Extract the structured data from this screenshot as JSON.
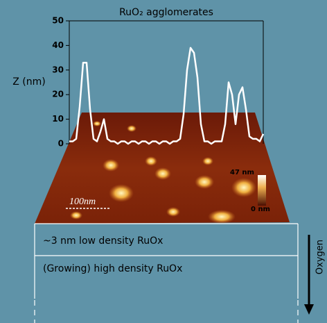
{
  "chart_data": {
    "type": "line",
    "title": "RuO₂ agglomerates",
    "y_label": "Z (nm)",
    "ylim": [
      0,
      50
    ],
    "yticks": [
      0,
      10,
      20,
      30,
      40,
      50
    ],
    "series": [
      {
        "name": null,
        "color": "#ffffff",
        "values": [
          1,
          1,
          2,
          15,
          33,
          33,
          14,
          2,
          1,
          5,
          10,
          2,
          1,
          1,
          0,
          1,
          1,
          0,
          1,
          1,
          0,
          1,
          1,
          0,
          1,
          1,
          0,
          1,
          1,
          0,
          1,
          1,
          2,
          12,
          30,
          39,
          37,
          27,
          8,
          1,
          1,
          0,
          1,
          1,
          1,
          8,
          25,
          20,
          8,
          20,
          23,
          14,
          3,
          2,
          2,
          1,
          4
        ]
      }
    ],
    "annotations": {
      "scale_bar": "100nm",
      "color_max": "47 nm",
      "color_min": "0 nm",
      "layer_top": "~3 nm low density RuOx",
      "layer_bottom": "(Growing) high density RuOx",
      "arrow": "Oxygen"
    }
  }
}
